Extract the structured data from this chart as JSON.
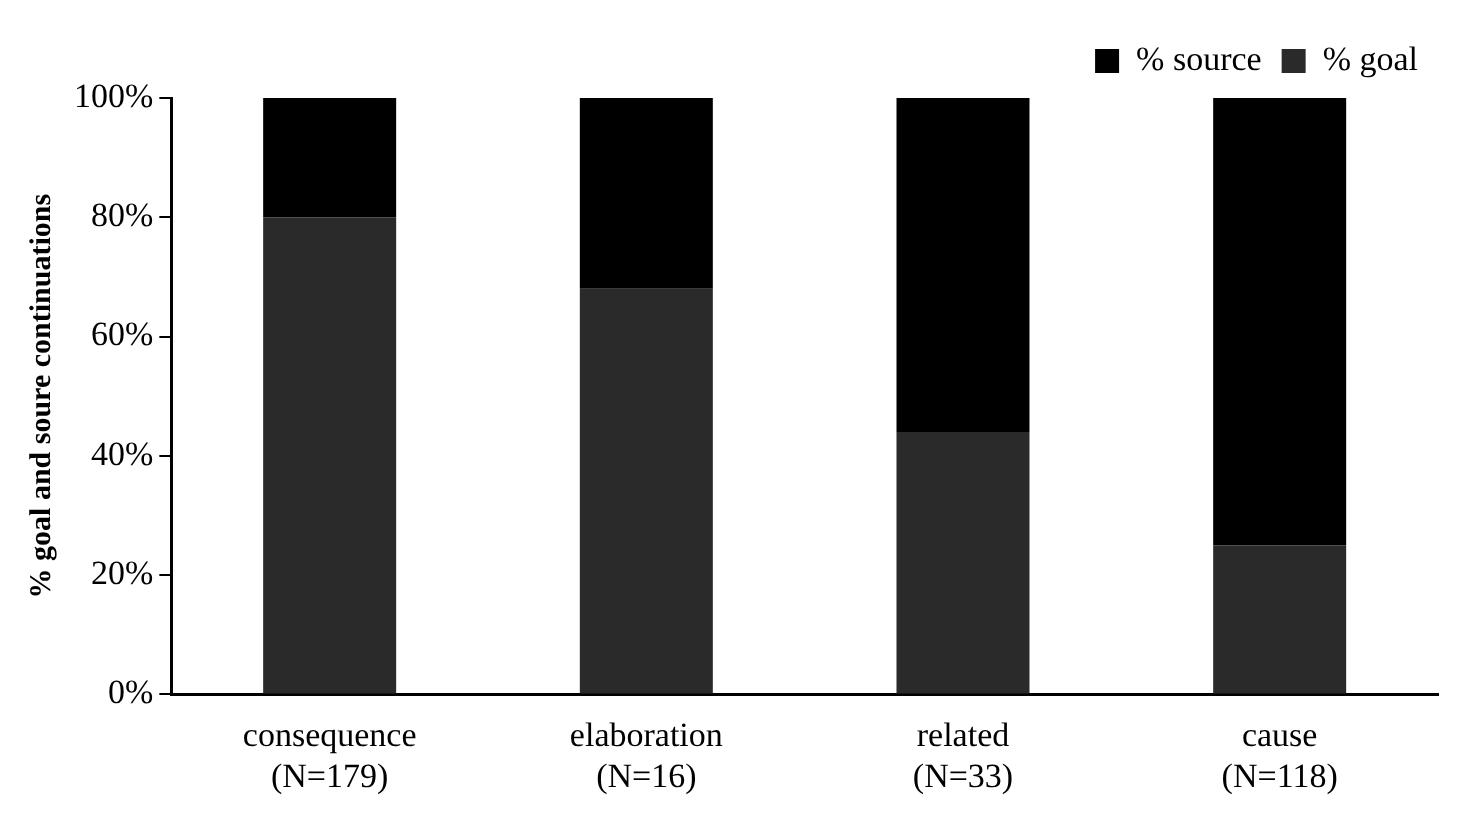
{
  "chart_data": {
    "type": "bar",
    "stacked": true,
    "ylabel": "% goal and soure continuations",
    "categories": [
      "consequence (N=179)",
      "elaboration (N=16)",
      "related (N=33)",
      "cause (N=118)"
    ],
    "series": [
      {
        "name": "% goal",
        "color": "#2a2a2a",
        "values": [
          80,
          68,
          44,
          25
        ]
      },
      {
        "name": "% source",
        "color": "#000000",
        "values": [
          20,
          32,
          56,
          75
        ]
      }
    ],
    "ylim": [
      0,
      100
    ],
    "yticks": [
      {
        "value": 0,
        "label": "0%"
      },
      {
        "value": 20,
        "label": "20%"
      },
      {
        "value": 40,
        "label": "40%"
      },
      {
        "value": 60,
        "label": "60%"
      },
      {
        "value": 80,
        "label": "80%"
      },
      {
        "value": 100,
        "label": "100%"
      }
    ],
    "grid": false,
    "legend": "top right"
  }
}
